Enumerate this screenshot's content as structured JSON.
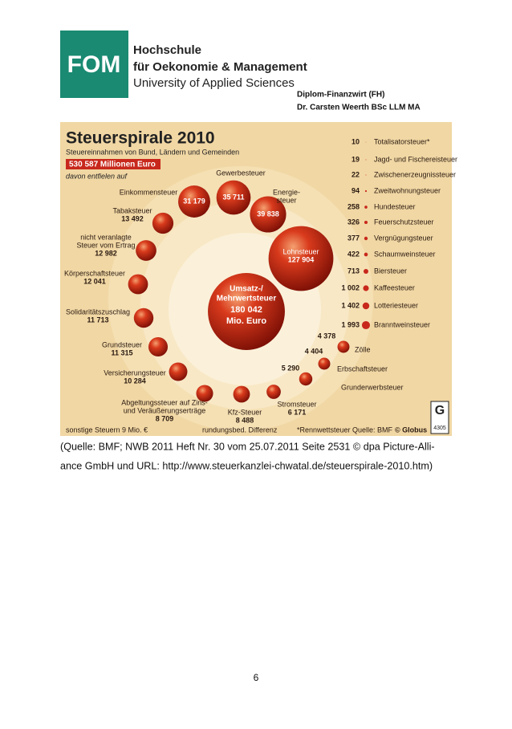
{
  "header": {
    "logo": "FOM",
    "school": [
      "Hochschule",
      "für Oekonomie & Management",
      "University of Applied Sciences"
    ],
    "author": [
      "Diplom-Finanzwirt (FH)",
      "Dr. Carsten Weerth BSc LLM MA"
    ]
  },
  "infographic": {
    "title": "Steuerspirale 2010",
    "subtitle": "Steuereinnahmen von Bund, Ländern und Gemeinden",
    "total": "530 587 Millionen Euro",
    "intro": "davon entfielen auf",
    "taxes": [
      {
        "label": [
          "Gewerbesteuer"
        ],
        "value": "35 711"
      },
      {
        "label": [
          "Einkommensteuer"
        ],
        "value": "31 179"
      },
      {
        "label": [
          "Energie-",
          "steuer"
        ],
        "value": "39 838"
      },
      {
        "label": [
          "Lohnsteuer"
        ],
        "value": "127 904"
      },
      {
        "label": [
          "Umsatz-/",
          "Mehrwertsteuer"
        ],
        "value": "180 042",
        "unit": "Mio. Euro"
      },
      {
        "label": [
          "Tabaksteuer"
        ],
        "value": "13 492"
      },
      {
        "label": [
          "nicht veranlagte",
          "Steuer vom Ertrag"
        ],
        "value": "12 982"
      },
      {
        "label": [
          "Körperschaftsteuer"
        ],
        "value": "12 041"
      },
      {
        "label": [
          "Solidaritätszuschlag"
        ],
        "value": "11 713"
      },
      {
        "label": [
          "Grundsteuer"
        ],
        "value": "11 315"
      },
      {
        "label": [
          "Versicherungsteuer"
        ],
        "value": "10 284"
      },
      {
        "label": [
          "Abgeltungssteuer auf Zins-",
          "und Veräußerungserträge"
        ],
        "value": "8 709"
      },
      {
        "label": [
          "Kfz-Steuer"
        ],
        "value": "8 488"
      },
      {
        "label": [
          "Stromsteuer"
        ],
        "value": "6 171"
      },
      {
        "label": [
          "Grunderwerbsteuer"
        ],
        "value": "5 290"
      },
      {
        "label": [
          "Erbschaftsteuer"
        ],
        "value": "4 404"
      },
      {
        "label": [
          "Zölle"
        ],
        "value": "4 378"
      }
    ],
    "small_taxes": [
      {
        "label": "Totalisatorsteuer*",
        "value": "10"
      },
      {
        "label": "Jagd- und Fischereisteuer",
        "value": "19"
      },
      {
        "label": "Zwischenerzeugnissteuer",
        "value": "22"
      },
      {
        "label": "Zweitwohnungsteuer",
        "value": "94"
      },
      {
        "label": "Hundesteuer",
        "value": "258"
      },
      {
        "label": "Feuerschutzsteuer",
        "value": "326"
      },
      {
        "label": "Vergnügungsteuer",
        "value": "377"
      },
      {
        "label": "Schaumweinsteuer",
        "value": "422"
      },
      {
        "label": "Biersteuer",
        "value": "713"
      },
      {
        "label": "Kaffeesteuer",
        "value": "1 002"
      },
      {
        "label": "Lotteriesteuer",
        "value": "1 402"
      },
      {
        "label": "Branntweinsteuer",
        "value": "1 993"
      }
    ],
    "notes": [
      "sonstige Steuern 9 Mio. €",
      "rundungsbed. Differenz",
      "*Rennwettsteuer   Quelle: BMF",
      "© Globus"
    ],
    "badge": "4305"
  },
  "caption": [
    "(Quelle: BMF; NWB 2011 Heft Nr. 30 vom 25.07.2011 Seite 2531 © dpa Picture-Alli-",
    "ance GmbH und URL: http://www.steuerkanzlei-chwatal.de/steuerspirale-2010.htm)"
  ],
  "page_number": "6"
}
